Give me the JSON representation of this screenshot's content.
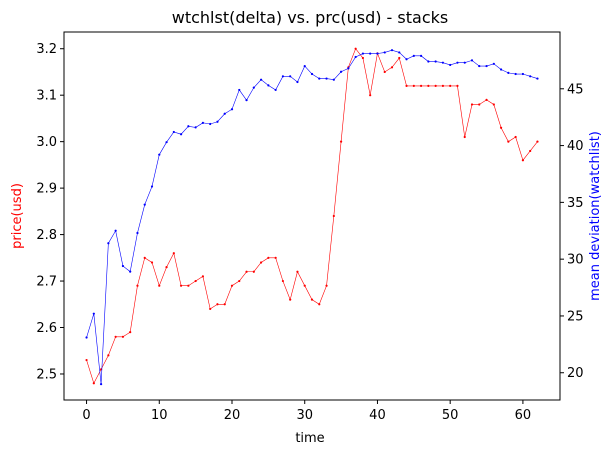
{
  "chart_data": {
    "type": "line",
    "title": "wtchlst(delta) vs. prc(usd) - stacks",
    "xlabel": "time",
    "ylabel_left": "price(usd)",
    "ylabel_right": "mean deviation(watchlist)",
    "xlim": [
      -3.1,
      65.1
    ],
    "ylim_left": [
      2.444,
      3.236
    ],
    "ylim_right": [
      17.6,
      50.0
    ],
    "xticks": [
      0,
      10,
      20,
      30,
      40,
      50,
      60
    ],
    "yticks_left": [
      2.5,
      2.6,
      2.7,
      2.8,
      2.9,
      3.0,
      3.1,
      3.2
    ],
    "yticks_right": [
      20,
      25,
      30,
      35,
      40,
      45
    ],
    "grid": false,
    "colors": {
      "left": "#ff0000",
      "right": "#0000ff"
    },
    "series": [
      {
        "name": "price(usd)",
        "axis": "left",
        "color": "#ff0000",
        "x": [
          0,
          1,
          2,
          3,
          4,
          5,
          6,
          7,
          8,
          9,
          10,
          11,
          12,
          13,
          14,
          15,
          16,
          17,
          18,
          19,
          20,
          21,
          22,
          23,
          24,
          25,
          26,
          27,
          28,
          29,
          30,
          31,
          32,
          33,
          34,
          35,
          36,
          37,
          38,
          39,
          40,
          41,
          42,
          43,
          44,
          45,
          46,
          47,
          48,
          49,
          50,
          51,
          52,
          53,
          54,
          55,
          56,
          57,
          58,
          59,
          60,
          61,
          62
        ],
        "values": [
          2.53,
          2.48,
          2.51,
          2.54,
          2.58,
          2.58,
          2.59,
          2.69,
          2.75,
          2.74,
          2.69,
          2.73,
          2.76,
          2.69,
          2.69,
          2.7,
          2.71,
          2.64,
          2.65,
          2.65,
          2.69,
          2.7,
          2.72,
          2.72,
          2.74,
          2.75,
          2.75,
          2.7,
          2.66,
          2.72,
          2.69,
          2.66,
          2.65,
          2.69,
          2.84,
          3.0,
          3.16,
          3.2,
          3.18,
          3.1,
          3.19,
          3.15,
          3.16,
          3.18,
          3.12,
          3.12,
          3.12,
          3.12,
          3.12,
          3.12,
          3.12,
          3.12,
          3.01,
          3.08,
          3.08,
          3.09,
          3.08,
          3.03,
          3.0,
          3.01,
          2.96,
          2.98,
          3.0
        ]
      },
      {
        "name": "mean deviation(watchlist)",
        "axis": "right",
        "color": "#0000ff",
        "x": [
          0,
          1,
          2,
          3,
          4,
          5,
          6,
          7,
          8,
          9,
          10,
          11,
          12,
          13,
          14,
          15,
          16,
          17,
          18,
          19,
          20,
          21,
          22,
          23,
          24,
          25,
          26,
          27,
          28,
          29,
          30,
          31,
          32,
          33,
          34,
          35,
          36,
          37,
          38,
          39,
          40,
          41,
          42,
          43,
          44,
          45,
          46,
          47,
          48,
          49,
          50,
          51,
          52,
          53,
          54,
          55,
          56,
          57,
          58,
          59,
          60,
          61,
          62
        ],
        "values": [
          23.1,
          25.2,
          19.0,
          31.4,
          32.5,
          29.4,
          28.9,
          32.3,
          34.8,
          36.4,
          39.2,
          40.3,
          41.2,
          41.0,
          41.7,
          41.6,
          42.0,
          41.9,
          42.1,
          42.8,
          43.2,
          44.9,
          44.0,
          45.1,
          45.8,
          45.3,
          44.9,
          46.1,
          46.1,
          45.6,
          47.0,
          46.3,
          45.9,
          45.9,
          45.8,
          46.5,
          46.8,
          47.8,
          48.1,
          48.1,
          48.1,
          48.2,
          48.4,
          48.2,
          47.6,
          47.9,
          47.9,
          47.4,
          47.4,
          47.3,
          47.1,
          47.3,
          47.3,
          47.5,
          47.0,
          47.0,
          47.2,
          46.7,
          46.4,
          46.3,
          46.3,
          46.1,
          45.9
        ]
      }
    ]
  }
}
